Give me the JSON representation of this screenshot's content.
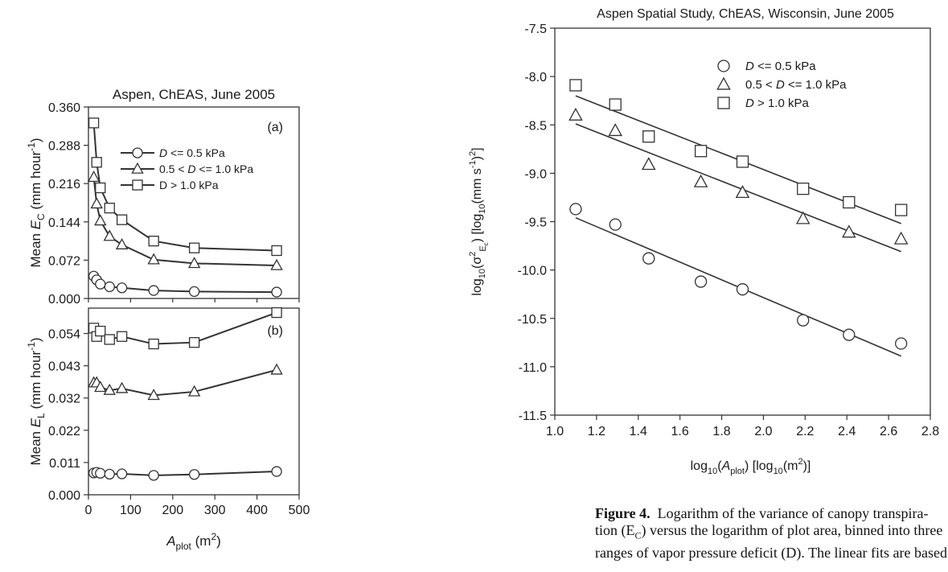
{
  "chart_data": [
    {
      "type": "line",
      "panel": "a",
      "title": "Aspen, ChEAS, June 2005",
      "panel_label": "(a)",
      "ylabel": {
        "prefix": "Mean ",
        "var": "E",
        "sub": "C",
        "suffix": " (mm hour",
        "sup": "-1",
        "end": ")"
      },
      "y_ticks": [
        "0.000",
        "0.072",
        "0.144",
        "0.216",
        "0.288",
        "0.360"
      ],
      "ylim": [
        0,
        0.36
      ],
      "xlim": [
        0,
        500
      ],
      "grid": false,
      "legend_position": "top-right",
      "series": [
        {
          "legend": {
            "var": "D",
            "text": " <= 0.5 kPa"
          },
          "marker": "circle",
          "x": [
            12.6,
            19.5,
            28.2,
            50.1,
            79.4,
            154.9,
            251.2,
            446.7
          ],
          "y": [
            0.042,
            0.035,
            0.027,
            0.022,
            0.02,
            0.015,
            0.013,
            0.012
          ]
        },
        {
          "legend": {
            "var": "D",
            "pre": "0.5 < ",
            "text": " <= 1.0 kPa"
          },
          "marker": "triangle",
          "x": [
            12.6,
            19.5,
            28.2,
            50.1,
            79.4,
            154.9,
            251.2,
            446.7
          ],
          "y": [
            0.228,
            0.178,
            0.146,
            0.117,
            0.101,
            0.073,
            0.066,
            0.062
          ]
        },
        {
          "legend": {
            "text": "D > 1.0 kPa"
          },
          "marker": "square",
          "x": [
            12.6,
            19.5,
            28.2,
            50.1,
            79.4,
            154.9,
            251.2,
            446.7
          ],
          "y": [
            0.33,
            0.256,
            0.208,
            0.17,
            0.148,
            0.108,
            0.095,
            0.09
          ]
        }
      ]
    },
    {
      "type": "line",
      "panel": "b",
      "panel_label": "(b)",
      "ylabel": {
        "prefix": "Mean ",
        "var": "E",
        "sub": "L",
        "suffix": " (mm hour",
        "sup": "-1",
        "end": ")"
      },
      "xlabel": {
        "var": "A",
        "sub": "plot",
        "suffix": " (m",
        "sup": "2",
        "end": ")"
      },
      "x_ticks": [
        "0",
        "100",
        "200",
        "300",
        "400",
        "500"
      ],
      "y_ticks": [
        "0.000",
        "0.011",
        "0.022",
        "0.032",
        "0.043",
        "0.054"
      ],
      "y_tick_values": [
        0,
        0.0108,
        0.0216,
        0.0324,
        0.0432,
        0.054
      ],
      "ylim": [
        0,
        0.0625
      ],
      "xlim": [
        0,
        500
      ],
      "grid": false,
      "series": [
        {
          "marker": "circle",
          "x": [
            12.6,
            19.5,
            28.2,
            50.1,
            79.4,
            154.9,
            251.2,
            446.7
          ],
          "y": [
            0.0073,
            0.0075,
            0.0072,
            0.0069,
            0.007,
            0.0065,
            0.0068,
            0.0078
          ]
        },
        {
          "marker": "triangle",
          "x": [
            12.6,
            19.5,
            28.2,
            50.1,
            79.4,
            154.9,
            251.2,
            446.7
          ],
          "y": [
            0.0375,
            0.0375,
            0.036,
            0.035,
            0.0356,
            0.0333,
            0.0345,
            0.0418
          ]
        },
        {
          "marker": "square",
          "x": [
            12.6,
            19.5,
            28.2,
            50.1,
            79.4,
            154.9,
            251.2,
            446.7
          ],
          "y": [
            0.0558,
            0.053,
            0.0548,
            0.052,
            0.053,
            0.0505,
            0.051,
            0.061
          ]
        }
      ]
    },
    {
      "type": "scatter",
      "panel": "right",
      "title": "Aspen Spatial Study, ChEAS, Wisconsin, June 2005",
      "ylabel": {
        "prefix": "log",
        "sub1": "10",
        "mid": "(σ",
        "sup": "2",
        "subvar": "E",
        "subsub": "c",
        "mid2": ") [log",
        "sub2": "10",
        "mid3": "(mm s",
        "sup2": "-1",
        "mid4": ")",
        "sup3": "2",
        "end": "]"
      },
      "xlabel": {
        "prefix": "log",
        "sub1": "10",
        "mid": "(",
        "var": "A",
        "sub": "plot",
        "mid2": ") [log",
        "sub2": "10",
        "mid3": "(m",
        "sup": "2",
        "end": ")]"
      },
      "x_ticks": [
        "1.0",
        "1.2",
        "1.4",
        "1.6",
        "1.8",
        "2.0",
        "2.2",
        "2.4",
        "2.6",
        "2.8"
      ],
      "y_ticks": [
        "-7.5",
        "-8.0",
        "-8.5",
        "-9.0",
        "-9.5",
        "-10.0",
        "-10.5",
        "-11.0",
        "-11.5"
      ],
      "xlim": [
        1.0,
        2.8
      ],
      "ylim": [
        -11.5,
        -7.5
      ],
      "grid": false,
      "legend_position": "top-right",
      "series": [
        {
          "legend": {
            "var": "D",
            "text": " <= 0.5 kPa"
          },
          "marker": "circle",
          "x": [
            1.1,
            1.29,
            1.45,
            1.7,
            1.9,
            2.19,
            2.41,
            2.66
          ],
          "y": [
            -9.37,
            -9.53,
            -9.88,
            -10.12,
            -10.2,
            -10.52,
            -10.67,
            -10.76
          ],
          "fit": {
            "x": [
              1.1,
              2.66
            ],
            "y": [
              -9.46,
              -10.89
            ]
          }
        },
        {
          "legend": {
            "var": "D",
            "pre": "0.5 < ",
            "text": " <= 1.0 kPa"
          },
          "marker": "triangle",
          "x": [
            1.1,
            1.29,
            1.45,
            1.7,
            1.9,
            2.19,
            2.41,
            2.66
          ],
          "y": [
            -8.4,
            -8.56,
            -8.91,
            -9.09,
            -9.2,
            -9.47,
            -9.61,
            -9.68
          ],
          "fit": {
            "x": [
              1.1,
              2.66
            ],
            "y": [
              -8.49,
              -9.81
            ]
          }
        },
        {
          "legend": {
            "var": "D",
            "text": " > 1.0 kPa"
          },
          "marker": "square",
          "x": [
            1.1,
            1.29,
            1.45,
            1.7,
            1.9,
            2.19,
            2.41,
            2.66
          ],
          "y": [
            -8.09,
            -8.29,
            -8.62,
            -8.77,
            -8.88,
            -9.16,
            -9.3,
            -9.38
          ],
          "fit": {
            "x": [
              1.1,
              2.66
            ],
            "y": [
              -8.2,
              -9.52
            ]
          }
        }
      ]
    }
  ],
  "caption": {
    "label": "Figure 4.",
    "lines": [
      "Logarithm of the variance of canopy transpira-",
      "tion (E",
      ") versus the logarithm of plot area, binned into three",
      "ranges of vapor pressure deficit (D). The linear fits are based"
    ],
    "sub": "C"
  }
}
